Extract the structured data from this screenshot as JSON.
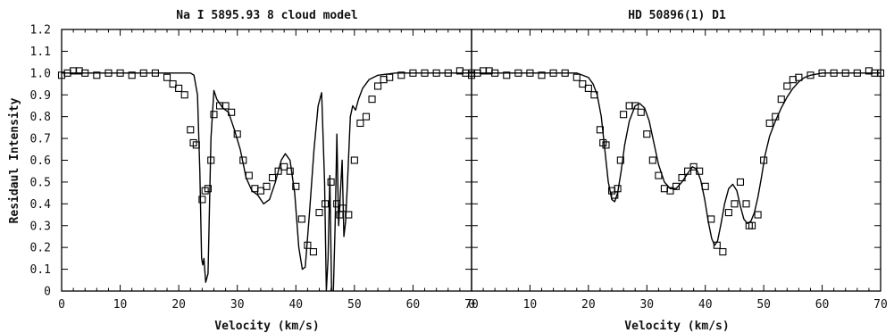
{
  "chart_data": [
    {
      "type": "line",
      "title": "Na I  5895.93  8 cloud model",
      "xlabel": "Velocity (km/s)",
      "ylabel": "Residaul Intensity",
      "xlim": [
        0,
        70
      ],
      "ylim": [
        0,
        1.2
      ],
      "xticks": [
        0,
        10,
        20,
        30,
        40,
        50,
        60,
        70
      ],
      "yticks": [
        0,
        0.1,
        0.2,
        0.3,
        0.4,
        0.5,
        0.6,
        0.7,
        0.8,
        0.9,
        1.0,
        1.1,
        1.2
      ],
      "ytick_labels": [
        "0",
        "0.1",
        "0.2",
        "0.3",
        "0.4",
        "0.5",
        "0.6",
        "0.7",
        "0.8",
        "0.9",
        "1.0",
        "1.1",
        "1.2"
      ],
      "grid": false,
      "series": [
        {
          "style": "line",
          "x": [
            0,
            5,
            10,
            15,
            20,
            22,
            22.6,
            23.2,
            23.6,
            23.9,
            24.1,
            24.3,
            24.6,
            25.0,
            25.5,
            26,
            26.5,
            27.5,
            28.5,
            29.5,
            30.5,
            31.5,
            32.5,
            33.5,
            34.5,
            35.5,
            36.5,
            37.5,
            38.2,
            39,
            39.8,
            40.5,
            41.1,
            41.6,
            42.3,
            43.1,
            43.8,
            44.4,
            44.9,
            45.2,
            45.5,
            45.8,
            46.1,
            46.4,
            46.7,
            47.0,
            47.3,
            47.6,
            47.9,
            48.2,
            48.5,
            48.9,
            49.3,
            49.7,
            50.2,
            50.7,
            51.4,
            52.5,
            54,
            57,
            60,
            65,
            70
          ],
          "y": [
            1.0,
            1.0,
            1.0,
            1.0,
            1.0,
            1.0,
            0.99,
            0.9,
            0.55,
            0.15,
            0.12,
            0.15,
            0.04,
            0.08,
            0.7,
            0.92,
            0.88,
            0.84,
            0.82,
            0.74,
            0.65,
            0.52,
            0.46,
            0.44,
            0.4,
            0.42,
            0.5,
            0.6,
            0.63,
            0.6,
            0.45,
            0.2,
            0.1,
            0.11,
            0.35,
            0.65,
            0.85,
            0.91,
            0.5,
            0.0,
            0.15,
            0.53,
            0.0,
            0.0,
            0.3,
            0.72,
            0.3,
            0.45,
            0.6,
            0.25,
            0.32,
            0.55,
            0.8,
            0.85,
            0.83,
            0.88,
            0.93,
            0.97,
            0.99,
            1.0,
            1.0,
            1.0,
            1.0
          ]
        },
        {
          "style": "markers",
          "marker": "square",
          "x": [
            0,
            1,
            2,
            3,
            4,
            6,
            8,
            10,
            12,
            14,
            16,
            18,
            19,
            20,
            21,
            22,
            22.5,
            23,
            24,
            24.5,
            25,
            25.5,
            26,
            27,
            28,
            29,
            30,
            31,
            32,
            33,
            34,
            35,
            36,
            37,
            38,
            39,
            40,
            41,
            42,
            43,
            44,
            45,
            46,
            47,
            47.5,
            48,
            49,
            50,
            51,
            52,
            53,
            54,
            55,
            56,
            58,
            60,
            62,
            64,
            66,
            68,
            69,
            70
          ],
          "y": [
            0.99,
            1.0,
            1.01,
            1.01,
            1.0,
            0.99,
            1.0,
            1.0,
            0.99,
            1.0,
            1.0,
            0.98,
            0.95,
            0.93,
            0.9,
            0.74,
            0.68,
            0.67,
            0.42,
            0.46,
            0.47,
            0.6,
            0.81,
            0.85,
            0.85,
            0.82,
            0.72,
            0.6,
            0.53,
            0.47,
            0.46,
            0.48,
            0.52,
            0.55,
            0.57,
            0.55,
            0.48,
            0.33,
            0.21,
            0.18,
            0.36,
            0.4,
            0.5,
            0.4,
            0.35,
            0.38,
            0.35,
            0.6,
            0.77,
            0.8,
            0.88,
            0.94,
            0.97,
            0.98,
            0.99,
            1.0,
            1.0,
            1.0,
            1.0,
            1.01,
            1.0,
            1.0
          ]
        }
      ]
    },
    {
      "type": "line",
      "title": "HD 50896(1) D1",
      "xlabel": "Velocity (km/s)",
      "ylabel": "",
      "xlim": [
        0,
        70
      ],
      "ylim": [
        0,
        1.2
      ],
      "xticks": [
        0,
        10,
        20,
        30,
        40,
        50,
        60,
        70
      ],
      "grid": false,
      "series": [
        {
          "style": "line",
          "x": [
            0,
            5,
            10,
            15,
            18,
            19,
            20,
            20.8,
            21.5,
            22.2,
            22.8,
            23.4,
            24.0,
            24.5,
            25.0,
            25.6,
            26.2,
            27,
            28,
            28.8,
            29.6,
            30.4,
            31.2,
            32,
            33,
            34,
            35,
            36,
            37,
            37.8,
            38.5,
            39.2,
            39.9,
            40.5,
            41.1,
            41.6,
            42.1,
            42.7,
            43.3,
            44,
            44.7,
            45.4,
            46,
            46.6,
            47.2,
            47.8,
            48.4,
            49,
            49.6,
            50.2,
            51,
            52,
            53,
            54,
            55,
            56,
            57,
            58,
            60,
            62,
            65,
            68,
            70
          ],
          "y": [
            1.0,
            1.0,
            1.0,
            1.0,
            1.0,
            0.99,
            0.98,
            0.95,
            0.9,
            0.8,
            0.65,
            0.5,
            0.42,
            0.41,
            0.45,
            0.55,
            0.67,
            0.78,
            0.85,
            0.86,
            0.84,
            0.78,
            0.68,
            0.58,
            0.5,
            0.47,
            0.47,
            0.5,
            0.54,
            0.57,
            0.56,
            0.51,
            0.42,
            0.32,
            0.24,
            0.21,
            0.23,
            0.31,
            0.4,
            0.47,
            0.49,
            0.46,
            0.39,
            0.33,
            0.31,
            0.32,
            0.36,
            0.43,
            0.52,
            0.62,
            0.71,
            0.78,
            0.84,
            0.89,
            0.93,
            0.96,
            0.98,
            0.99,
            1.0,
            1.0,
            1.0,
            1.0,
            1.0
          ]
        },
        {
          "style": "markers",
          "marker": "square",
          "x": [
            0,
            1,
            2,
            3,
            4,
            6,
            8,
            10,
            12,
            14,
            16,
            18,
            19,
            20,
            21,
            22,
            22.5,
            23,
            24,
            24.5,
            25,
            25.5,
            26,
            27,
            28,
            29,
            30,
            31,
            32,
            33,
            34,
            35,
            36,
            37,
            38,
            39,
            40,
            41,
            42,
            43,
            44,
            45,
            46,
            47,
            47.5,
            48,
            49,
            50,
            51,
            52,
            53,
            54,
            55,
            56,
            58,
            60,
            62,
            64,
            66,
            68,
            69,
            70
          ],
          "y": [
            0.99,
            1.0,
            1.01,
            1.01,
            1.0,
            0.99,
            1.0,
            1.0,
            0.99,
            1.0,
            1.0,
            0.98,
            0.95,
            0.93,
            0.9,
            0.74,
            0.68,
            0.67,
            0.46,
            0.44,
            0.47,
            0.6,
            0.81,
            0.85,
            0.85,
            0.82,
            0.72,
            0.6,
            0.53,
            0.47,
            0.46,
            0.48,
            0.52,
            0.55,
            0.57,
            0.55,
            0.48,
            0.33,
            0.21,
            0.18,
            0.36,
            0.4,
            0.5,
            0.4,
            0.3,
            0.3,
            0.35,
            0.6,
            0.77,
            0.8,
            0.88,
            0.94,
            0.97,
            0.98,
            0.99,
            1.0,
            1.0,
            1.0,
            1.0,
            1.01,
            1.0,
            1.0
          ]
        }
      ]
    }
  ]
}
